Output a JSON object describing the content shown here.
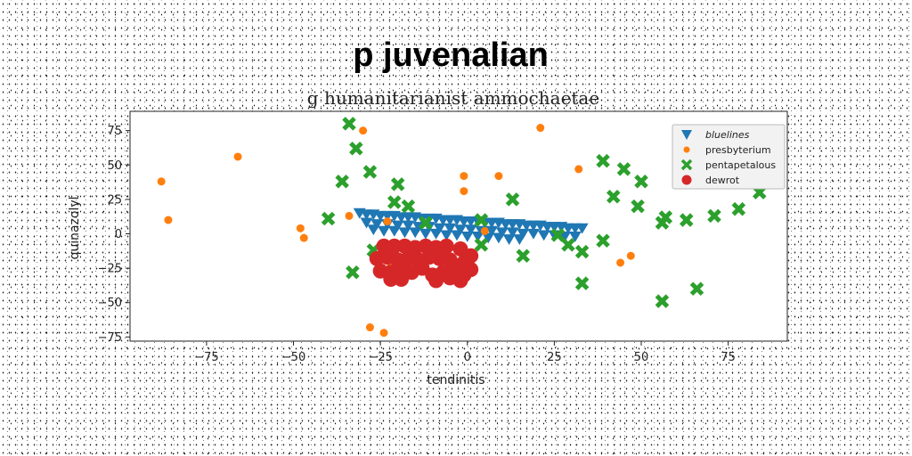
{
  "chart_data": {
    "type": "scatter",
    "title": "p juvenalian",
    "subtitle": "g humanitarianist ammochaetae",
    "xlabel": "tendinitis",
    "ylabel": "quinazolyl",
    "xlim": [
      -97,
      92
    ],
    "ylim": [
      -78,
      89
    ],
    "xticks": [
      -75,
      -50,
      -25,
      0,
      25,
      50,
      75
    ],
    "yticks": [
      -75,
      -50,
      -25,
      0,
      25,
      50,
      75
    ],
    "grid": false,
    "legend_position": "top-right",
    "series": [
      {
        "name": "bluelines",
        "marker": "triangle-down",
        "color": "#1f77b4",
        "points": [
          [
            -31,
            15
          ],
          [
            -29,
            14
          ],
          [
            -27,
            14
          ],
          [
            -25,
            13
          ],
          [
            -23,
            13
          ],
          [
            -21,
            13
          ],
          [
            -19,
            12
          ],
          [
            -17,
            12
          ],
          [
            -15,
            12
          ],
          [
            -13,
            11
          ],
          [
            -11,
            11
          ],
          [
            -9,
            11
          ],
          [
            -7,
            10
          ],
          [
            -5,
            10
          ],
          [
            -3,
            10
          ],
          [
            -1,
            9
          ],
          [
            1,
            9
          ],
          [
            3,
            9
          ],
          [
            5,
            8
          ],
          [
            7,
            8
          ],
          [
            9,
            8
          ],
          [
            11,
            7
          ],
          [
            13,
            7
          ],
          [
            15,
            7
          ],
          [
            17,
            6
          ],
          [
            19,
            6
          ],
          [
            21,
            6
          ],
          [
            23,
            5
          ],
          [
            25,
            5
          ],
          [
            27,
            5
          ],
          [
            29,
            4
          ],
          [
            31,
            4
          ],
          [
            33,
            4
          ],
          [
            -29,
            8
          ],
          [
            -26,
            7
          ],
          [
            -23,
            7
          ],
          [
            -20,
            6
          ],
          [
            -17,
            6
          ],
          [
            -14,
            5
          ],
          [
            -11,
            5
          ],
          [
            -8,
            4
          ],
          [
            -5,
            4
          ],
          [
            -2,
            3
          ],
          [
            1,
            3
          ],
          [
            4,
            2
          ],
          [
            7,
            2
          ],
          [
            10,
            1
          ],
          [
            13,
            1
          ],
          [
            16,
            0
          ],
          [
            19,
            0
          ],
          [
            22,
            -1
          ],
          [
            25,
            -1
          ],
          [
            28,
            -2
          ],
          [
            31,
            -2
          ],
          [
            -27,
            3
          ],
          [
            -24,
            2
          ],
          [
            -21,
            2
          ],
          [
            -18,
            1
          ],
          [
            -15,
            1
          ],
          [
            -12,
            0
          ],
          [
            -9,
            0
          ],
          [
            -6,
            -1
          ],
          [
            -3,
            -1
          ],
          [
            0,
            -2
          ],
          [
            3,
            -2
          ],
          [
            6,
            -3
          ],
          [
            9,
            -3
          ],
          [
            12,
            -4
          ],
          [
            15,
            -4
          ]
        ]
      },
      {
        "name": "presbyterium",
        "marker": "circle",
        "color": "#ff7f0e",
        "points": [
          [
            -88,
            38
          ],
          [
            -86,
            10
          ],
          [
            -66,
            56
          ],
          [
            -48,
            4
          ],
          [
            -47,
            -3
          ],
          [
            -34,
            13
          ],
          [
            -30,
            75
          ],
          [
            -23,
            9
          ],
          [
            -28,
            -68
          ],
          [
            -24,
            -72
          ],
          [
            -1,
            42
          ],
          [
            -1,
            31
          ],
          [
            9,
            42
          ],
          [
            21,
            77
          ],
          [
            32,
            47
          ],
          [
            44,
            -21
          ],
          [
            47,
            -16
          ],
          [
            5,
            2
          ],
          [
            -22,
            -22
          ]
        ]
      },
      {
        "name": "pentapetalous",
        "marker": "x",
        "color": "#2ca02c",
        "points": [
          [
            -34,
            80
          ],
          [
            -32,
            62
          ],
          [
            -28,
            45
          ],
          [
            -36,
            38
          ],
          [
            -40,
            11
          ],
          [
            -20,
            36
          ],
          [
            -21,
            23
          ],
          [
            -17,
            20
          ],
          [
            -12,
            8
          ],
          [
            -27,
            -12
          ],
          [
            -33,
            -28
          ],
          [
            4,
            10
          ],
          [
            4,
            -8
          ],
          [
            13,
            25
          ],
          [
            16,
            -16
          ],
          [
            26,
            -1
          ],
          [
            29,
            -8
          ],
          [
            33,
            -13
          ],
          [
            33,
            -36
          ],
          [
            39,
            -5
          ],
          [
            39,
            53
          ],
          [
            42,
            27
          ],
          [
            45,
            47
          ],
          [
            50,
            38
          ],
          [
            49,
            20
          ],
          [
            56,
            8
          ],
          [
            57,
            12
          ],
          [
            56,
            -49
          ],
          [
            63,
            10
          ],
          [
            66,
            -40
          ],
          [
            71,
            13
          ],
          [
            78,
            18
          ],
          [
            84,
            30
          ]
        ]
      },
      {
        "name": "dewrot",
        "marker": "circle-large",
        "color": "#d62728",
        "points": [
          [
            -24,
            -9
          ],
          [
            -21,
            -9
          ],
          [
            -18,
            -9
          ],
          [
            -15,
            -10
          ],
          [
            -12,
            -9
          ],
          [
            -9,
            -10
          ],
          [
            -6,
            -9
          ],
          [
            -2,
            -11
          ],
          [
            -26,
            -18
          ],
          [
            -23,
            -17
          ],
          [
            -20,
            -19
          ],
          [
            -17,
            -18
          ],
          [
            -14,
            -19
          ],
          [
            -11,
            -17
          ],
          [
            -8,
            -18
          ],
          [
            -5,
            -19
          ],
          [
            -1,
            -21
          ],
          [
            1,
            -16
          ],
          [
            -25,
            -27
          ],
          [
            -22,
            -28
          ],
          [
            -19,
            -26
          ],
          [
            -16,
            -28
          ],
          [
            -13,
            -25
          ],
          [
            -10,
            -30
          ],
          [
            -7,
            -28
          ],
          [
            -4,
            -29
          ],
          [
            -1,
            -30
          ],
          [
            1,
            -26
          ],
          [
            -22,
            -33
          ],
          [
            -19,
            -33
          ],
          [
            -9,
            -34
          ],
          [
            -5,
            -32
          ],
          [
            -2,
            -34
          ],
          [
            -8,
            -13
          ],
          [
            -4,
            -24
          ]
        ]
      }
    ]
  }
}
